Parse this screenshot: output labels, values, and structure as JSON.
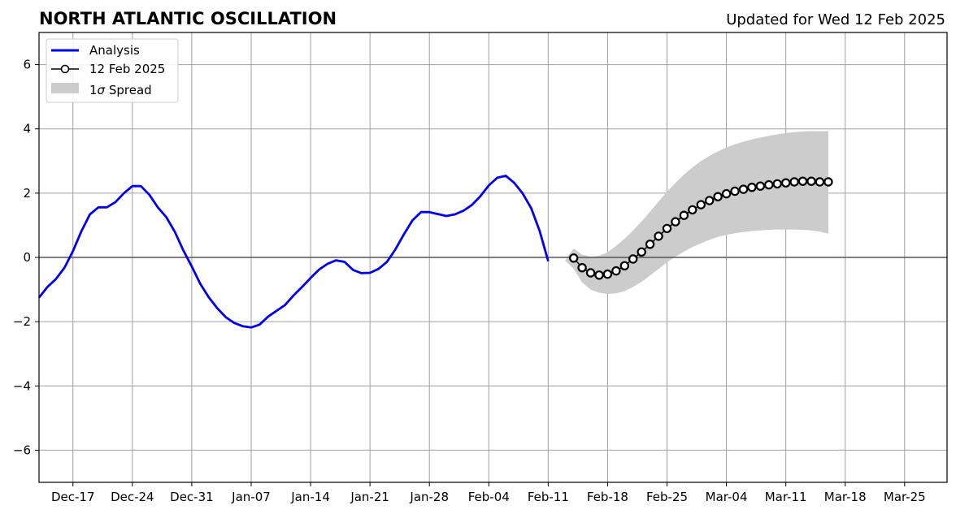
{
  "chart_data": {
    "type": "line",
    "title": "NORTH ATLANTIC OSCILLATION",
    "subtitle": "Updated for Wed 12 Feb 2025",
    "xlabel": "",
    "ylabel": "",
    "x_range": [
      "2024-12-13",
      "2025-03-30"
    ],
    "ylim": [
      -7,
      7
    ],
    "y_ticks": [
      -6,
      -4,
      -2,
      0,
      2,
      4,
      6
    ],
    "y_tick_labels": [
      "−6",
      "−4",
      "−2",
      "0",
      "2",
      "4",
      "6"
    ],
    "x_tick_dates": [
      "2024-12-17",
      "2024-12-24",
      "2024-12-31",
      "2025-01-07",
      "2025-01-14",
      "2025-01-21",
      "2025-01-28",
      "2025-02-04",
      "2025-02-11",
      "2025-02-18",
      "2025-02-25",
      "2025-03-04",
      "2025-03-11",
      "2025-03-18",
      "2025-03-25"
    ],
    "x_tick_labels": [
      "Dec-17",
      "Dec-24",
      "Dec-31",
      "Jan-07",
      "Jan-14",
      "Jan-21",
      "Jan-28",
      "Feb-04",
      "Feb-11",
      "Feb-18",
      "Feb-25",
      "Mar-04",
      "Mar-11",
      "Mar-18",
      "Mar-25"
    ],
    "grid": true,
    "legend_position": "top-left",
    "series": [
      {
        "name": "Analysis",
        "color": "#0000ee",
        "x": [
          "2024-12-13",
          "2024-12-14",
          "2024-12-15",
          "2024-12-16",
          "2024-12-17",
          "2024-12-18",
          "2024-12-19",
          "2024-12-20",
          "2024-12-21",
          "2024-12-22",
          "2024-12-23",
          "2024-12-24",
          "2024-12-25",
          "2024-12-26",
          "2024-12-27",
          "2024-12-28",
          "2024-12-29",
          "2024-12-30",
          "2024-12-31",
          "2025-01-01",
          "2025-01-02",
          "2025-01-03",
          "2025-01-04",
          "2025-01-05",
          "2025-01-06",
          "2025-01-07",
          "2025-01-08",
          "2025-01-09",
          "2025-01-10",
          "2025-01-11",
          "2025-01-12",
          "2025-01-13",
          "2025-01-14",
          "2025-01-15",
          "2025-01-16",
          "2025-01-17",
          "2025-01-18",
          "2025-01-19",
          "2025-01-20",
          "2025-01-21",
          "2025-01-22",
          "2025-01-23",
          "2025-01-24",
          "2025-01-25",
          "2025-01-26",
          "2025-01-27",
          "2025-01-28",
          "2025-01-29",
          "2025-01-30",
          "2025-01-31",
          "2025-02-01",
          "2025-02-02",
          "2025-02-03",
          "2025-02-04",
          "2025-02-05",
          "2025-02-06",
          "2025-02-07",
          "2025-02-08",
          "2025-02-09",
          "2025-02-10",
          "2025-02-11",
          "2025-02-12"
        ],
        "values": [
          -1.25,
          -0.92,
          -0.67,
          -0.32,
          0.2,
          0.82,
          1.34,
          1.56,
          1.56,
          1.72,
          2.0,
          2.22,
          2.22,
          1.95,
          1.56,
          1.25,
          0.8,
          0.22,
          -0.28,
          -0.82,
          -1.24,
          -1.58,
          -1.86,
          -2.04,
          -2.14,
          -2.18,
          -2.09,
          -1.84,
          -1.66,
          -1.48,
          -1.18,
          -0.92,
          -0.64,
          -0.38,
          -0.2,
          -0.09,
          -0.14,
          -0.39,
          -0.49,
          -0.48,
          -0.36,
          -0.14,
          0.25,
          0.72,
          1.15,
          1.41,
          1.41,
          1.35,
          1.29,
          1.34,
          1.45,
          1.63,
          1.9,
          2.24,
          2.48,
          2.54,
          2.32,
          1.99,
          1.53,
          0.82,
          -0.12,
          null
        ]
      },
      {
        "name": "12 Feb 2025",
        "color": "#000000",
        "marker": "circle",
        "x": [
          "2025-02-14",
          "2025-02-15",
          "2025-02-16",
          "2025-02-17",
          "2025-02-18",
          "2025-02-19",
          "2025-02-20",
          "2025-02-21",
          "2025-02-22",
          "2025-02-23",
          "2025-02-24",
          "2025-02-25",
          "2025-02-26",
          "2025-02-27",
          "2025-02-28",
          "2025-03-01",
          "2025-03-02",
          "2025-03-03",
          "2025-03-04",
          "2025-03-05",
          "2025-03-06",
          "2025-03-07",
          "2025-03-08",
          "2025-03-09",
          "2025-03-10",
          "2025-03-11",
          "2025-03-12",
          "2025-03-13",
          "2025-03-14",
          "2025-03-15",
          "2025-03-16"
        ],
        "values": [
          -0.02,
          -0.32,
          -0.48,
          -0.55,
          -0.52,
          -0.42,
          -0.26,
          -0.05,
          0.17,
          0.41,
          0.66,
          0.9,
          1.11,
          1.31,
          1.48,
          1.64,
          1.77,
          1.89,
          1.98,
          2.06,
          2.12,
          2.18,
          2.22,
          2.26,
          2.29,
          2.32,
          2.35,
          2.37,
          2.37,
          2.35,
          2.35
        ]
      }
    ],
    "spread": {
      "name": "1σ Spread",
      "color": "#cccccc",
      "x": [
        "2025-02-13",
        "2025-02-14",
        "2025-02-15",
        "2025-02-16",
        "2025-02-17",
        "2025-02-18",
        "2025-02-19",
        "2025-02-20",
        "2025-02-21",
        "2025-02-22",
        "2025-02-23",
        "2025-02-24",
        "2025-02-25",
        "2025-02-26",
        "2025-02-27",
        "2025-02-28",
        "2025-03-01",
        "2025-03-02",
        "2025-03-03",
        "2025-03-04",
        "2025-03-05",
        "2025-03-06",
        "2025-03-07",
        "2025-03-08",
        "2025-03-09",
        "2025-03-10",
        "2025-03-11",
        "2025-03-12",
        "2025-03-13",
        "2025-03-14",
        "2025-03-15",
        "2025-03-16"
      ],
      "upper": [
        -0.1,
        0.28,
        0.08,
        0.02,
        0.05,
        0.16,
        0.36,
        0.58,
        0.84,
        1.12,
        1.42,
        1.74,
        2.04,
        2.32,
        2.58,
        2.8,
        3.0,
        3.16,
        3.3,
        3.42,
        3.52,
        3.6,
        3.67,
        3.73,
        3.78,
        3.83,
        3.87,
        3.9,
        3.92,
        3.93,
        3.93,
        3.93
      ],
      "lower": [
        -0.1,
        -0.35,
        -0.78,
        -1.0,
        -1.1,
        -1.14,
        -1.12,
        -1.05,
        -0.92,
        -0.76,
        -0.56,
        -0.36,
        -0.15,
        0.02,
        0.18,
        0.32,
        0.44,
        0.55,
        0.64,
        0.7,
        0.75,
        0.79,
        0.82,
        0.84,
        0.86,
        0.87,
        0.87,
        0.87,
        0.86,
        0.84,
        0.8,
        0.74
      ]
    },
    "spread_label_text": "1",
    "spread_label_symbol": "σ",
    "spread_label_suffix": " Spread"
  }
}
